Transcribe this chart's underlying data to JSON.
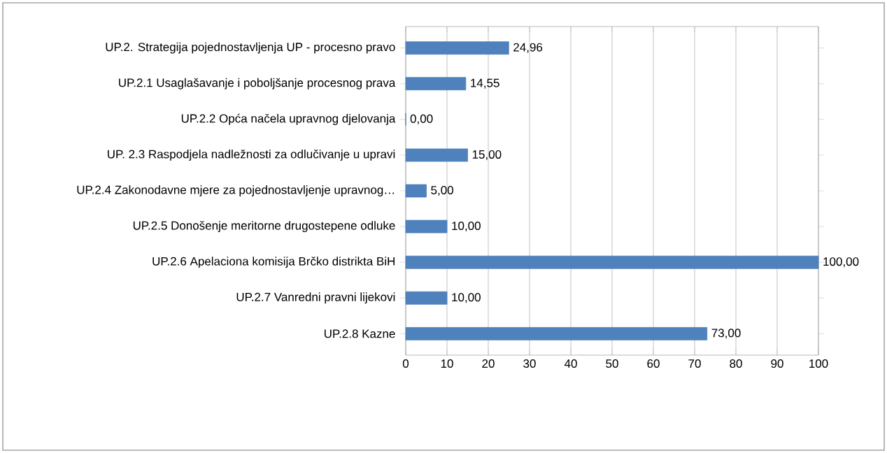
{
  "chart_data": {
    "type": "bar",
    "orientation": "horizontal",
    "categories": [
      "UP.2. Strategija pojednostavljenja UP - procesno pravo",
      "UP.2.1 Usaglašavanje i poboljšanje procesnog prava",
      "UP.2.2 Opća načela upravnog djelovanja",
      "UP. 2.3 Raspodjela nadležnosti za odlučivanje u upravi",
      "UP.2.4 Zakonodavne mjere za pojednostavljenje upravnog…",
      "UP.2.5 Donošenje meritorne drugostepene odluke",
      "UP.2.6 Apelaciona komisija Brčko distrikta BiH",
      "UP.2.7 Vanredni pravni lijekovi",
      "UP.2.8 Kazne"
    ],
    "values": [
      24.96,
      14.55,
      0,
      15,
      5,
      10,
      100,
      10,
      73
    ],
    "value_labels": [
      "24,96",
      "14,55",
      "0,00",
      "15,00",
      "5,00",
      "10,00",
      "100,00",
      "10,00",
      "73,00"
    ],
    "color": "#4f81bd",
    "xlim": [
      0,
      100
    ],
    "xticks": [
      0,
      10,
      20,
      30,
      40,
      50,
      60,
      70,
      80,
      90,
      100
    ],
    "grid": "x"
  }
}
